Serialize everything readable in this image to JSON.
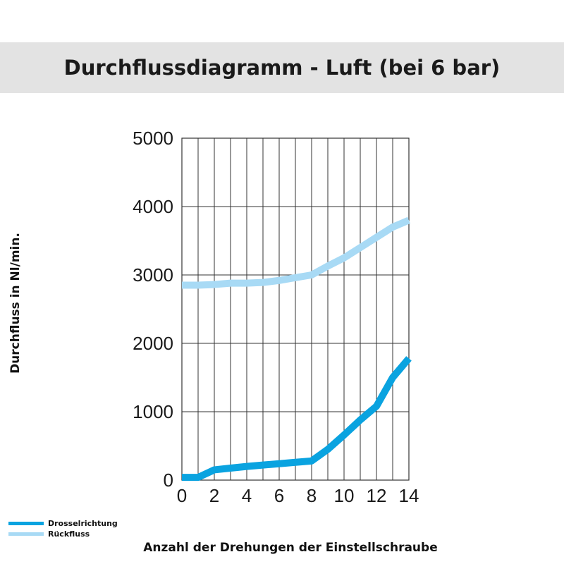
{
  "title": "Durchflussdiagramm - Luft (bei 6 bar)",
  "chart_data": {
    "type": "line",
    "title": "Durchflussdiagramm - Luft (bei 6 bar)",
    "xlabel": "Anzahl der Drehungen der Einstellschraube",
    "ylabel": "Durchfluss in Nl/min.",
    "xlim": [
      0,
      14
    ],
    "ylim": [
      0,
      5000
    ],
    "x_ticks": [
      0,
      2,
      4,
      6,
      8,
      10,
      12,
      14
    ],
    "y_ticks": [
      0,
      1000,
      2000,
      3000,
      4000,
      5000
    ],
    "grid": true,
    "legend_position": "bottom-left",
    "series": [
      {
        "name": "Drosselrichtung",
        "color": "#0aa3e0",
        "points": [
          [
            0,
            40
          ],
          [
            1,
            40
          ],
          [
            2,
            150
          ],
          [
            3,
            175
          ],
          [
            4,
            200
          ],
          [
            5,
            220
          ],
          [
            6,
            240
          ],
          [
            7,
            260
          ],
          [
            8,
            280
          ],
          [
            9,
            450
          ],
          [
            10,
            660
          ],
          [
            11,
            880
          ],
          [
            12,
            1080
          ],
          [
            13,
            1500
          ],
          [
            14,
            1780
          ]
        ]
      },
      {
        "name": "Rückfluss",
        "color": "#a8daf5",
        "points": [
          [
            0,
            2850
          ],
          [
            1,
            2850
          ],
          [
            2,
            2860
          ],
          [
            3,
            2880
          ],
          [
            4,
            2880
          ],
          [
            5,
            2890
          ],
          [
            6,
            2920
          ],
          [
            7,
            2960
          ],
          [
            8,
            3000
          ],
          [
            9,
            3130
          ],
          [
            10,
            3250
          ],
          [
            11,
            3400
          ],
          [
            12,
            3550
          ],
          [
            13,
            3700
          ],
          [
            14,
            3800
          ]
        ]
      }
    ]
  }
}
